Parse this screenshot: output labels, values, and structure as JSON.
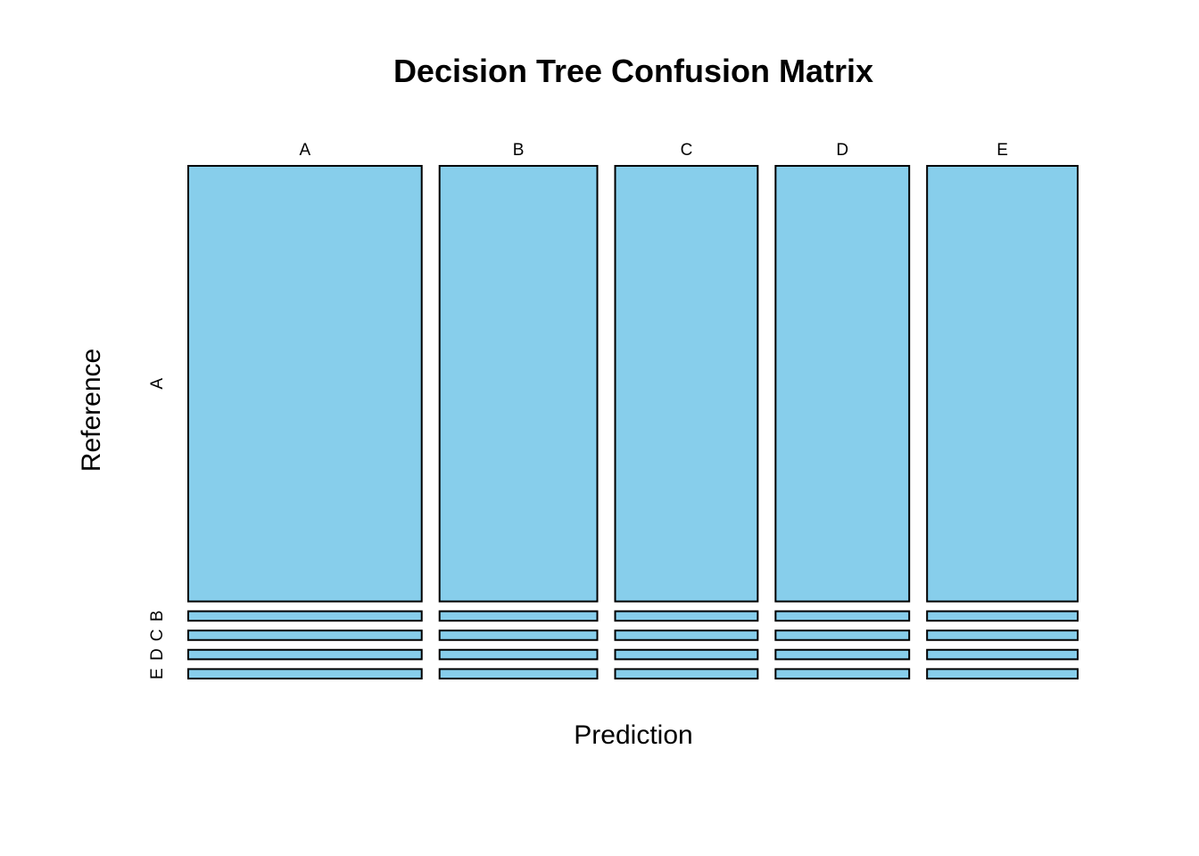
{
  "chart_data": {
    "type": "mosaic",
    "title": "Decision Tree Confusion Matrix",
    "xlabel": "Prediction",
    "ylabel": "Reference",
    "x_categories": [
      "A",
      "B",
      "C",
      "D",
      "E"
    ],
    "y_categories": [
      "A",
      "B",
      "C",
      "D",
      "E"
    ],
    "fill_color": "#87CEEB",
    "stroke_color": "#000000",
    "column_proportions": [
      0.262,
      0.177,
      0.16,
      0.15,
      0.169
    ],
    "cell_proportions": [
      [
        0.92,
        0.02,
        0.02,
        0.02,
        0.02
      ],
      [
        0.92,
        0.02,
        0.02,
        0.02,
        0.02
      ],
      [
        0.92,
        0.02,
        0.02,
        0.02,
        0.02
      ],
      [
        0.92,
        0.02,
        0.02,
        0.02,
        0.02
      ],
      [
        0.92,
        0.02,
        0.02,
        0.02,
        0.02
      ]
    ],
    "legend": "none",
    "grid": false
  }
}
